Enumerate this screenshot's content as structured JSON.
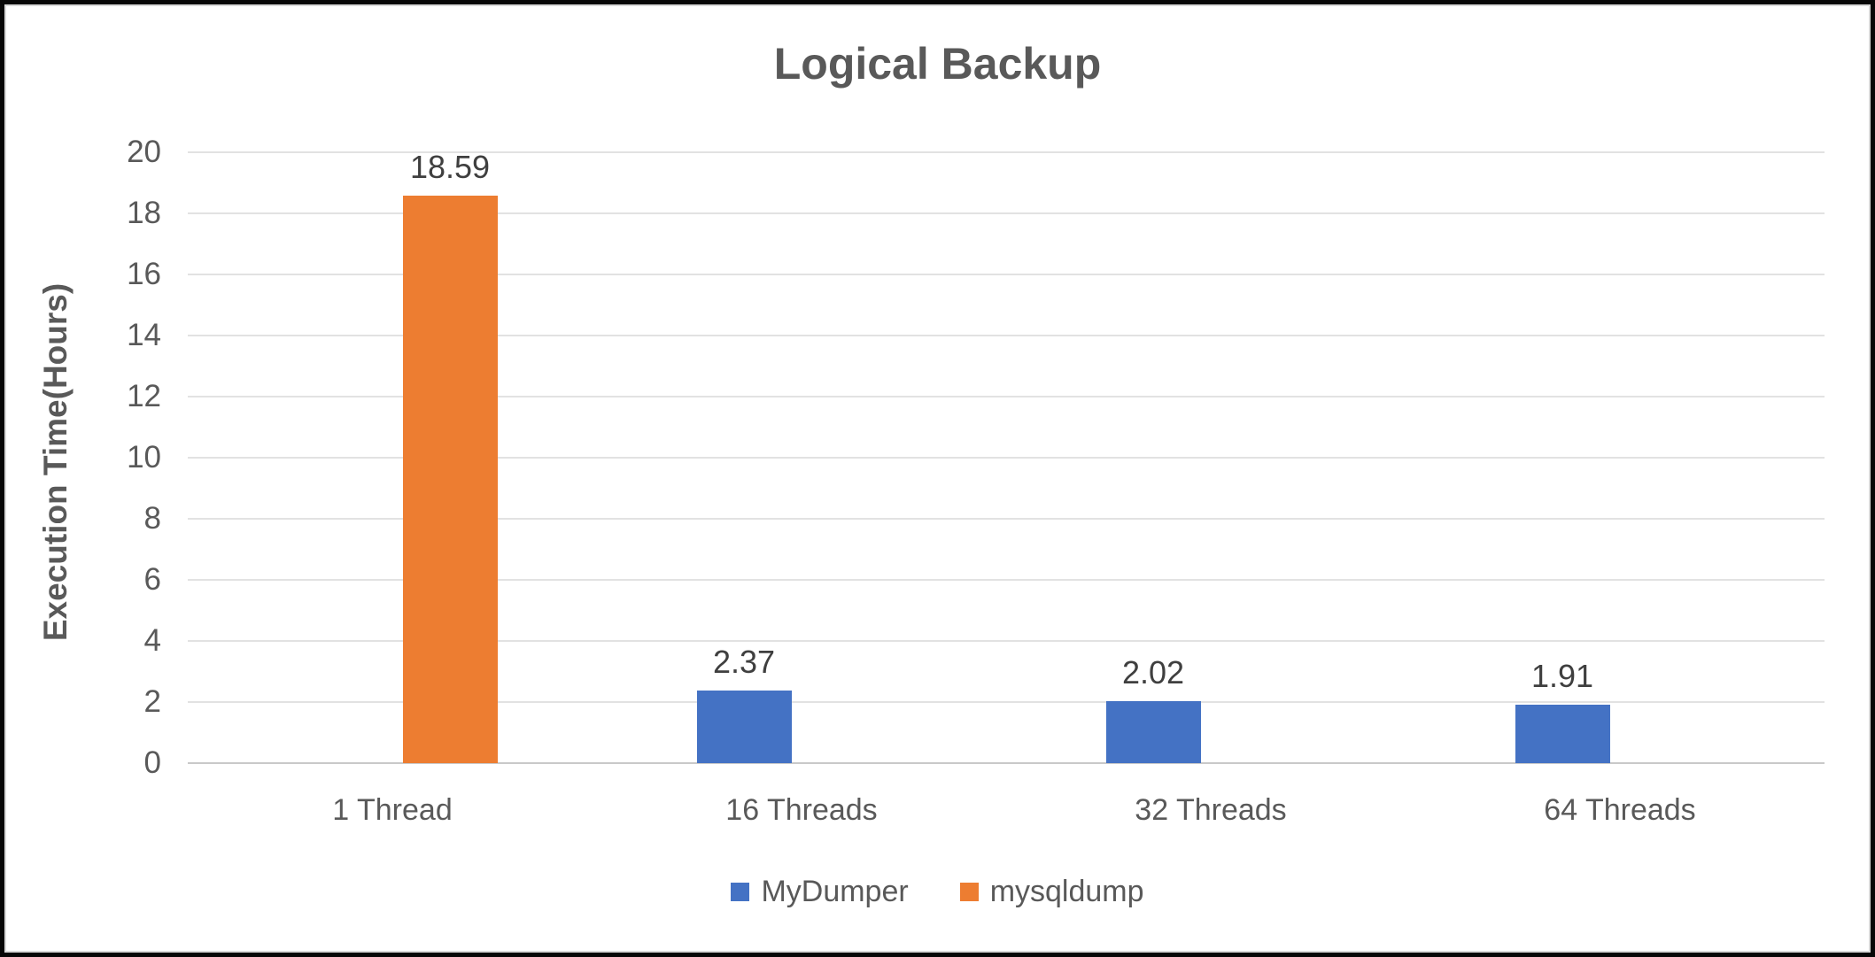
{
  "chart_data": {
    "type": "bar",
    "title": "Logical Backup",
    "xlabel": "",
    "ylabel": "Execution Time(Hours)",
    "categories": [
      "1 Thread",
      "16 Threads",
      "32 Threads",
      "64 Threads"
    ],
    "series": [
      {
        "name": "MyDumper",
        "color": "#4472C4",
        "values": [
          null,
          2.37,
          2.02,
          1.91
        ]
      },
      {
        "name": "mysqldump",
        "color": "#ED7D31",
        "values": [
          18.59,
          null,
          null,
          null
        ]
      }
    ],
    "data_labels": [
      "18.59",
      "2.37",
      "2.02",
      "1.91"
    ],
    "ylim": [
      0,
      20
    ],
    "yticks": [
      0,
      2,
      4,
      6,
      8,
      10,
      12,
      14,
      16,
      18,
      20
    ],
    "grid": "horizontal",
    "legend_position": "bottom-center",
    "colors": {
      "mydumper_blue": "#4472C4",
      "mysqldump_orange": "#ED7D31",
      "gridline": "#E2E2E2",
      "axis_text": "#595959",
      "title_text": "#595959",
      "data_label_text": "#3F3F3F"
    }
  }
}
